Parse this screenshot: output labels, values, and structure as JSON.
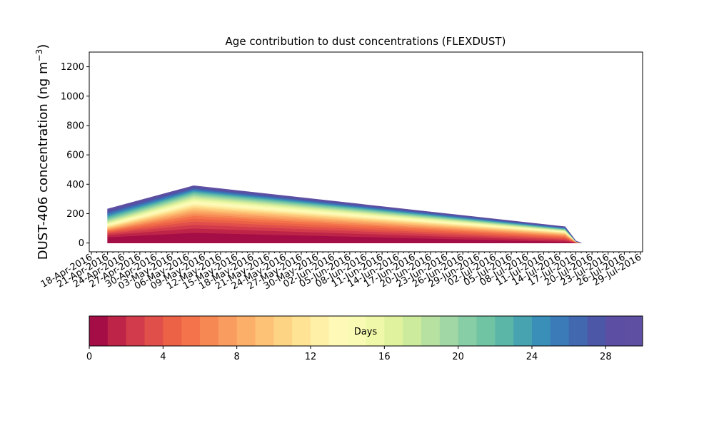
{
  "chart_data": {
    "type": "area",
    "title": "Age contribution to dust concentrations (FLEXDUST)",
    "ylabel_main": "DUST-406 concentration (ng m",
    "ylabel_sup": "−3",
    "ylabel_tail": ")",
    "xlabel": "",
    "ylim": [
      -60,
      1300
    ],
    "yticks": [
      0,
      200,
      400,
      600,
      800,
      1000,
      1200
    ],
    "xlim": [
      "2016-04-18",
      "2016-07-29"
    ],
    "xticks": [
      "18-Apr-2016",
      "21-Apr-2016",
      "24-Apr-2016",
      "27-Apr-2016",
      "30-Apr-2016",
      "03-May-2016",
      "06-May-2016",
      "09-May-2016",
      "12-May-2016",
      "15-May-2016",
      "18-May-2016",
      "21-May-2016",
      "24-May-2016",
      "27-May-2016",
      "30-May-2016",
      "02-Jun-2016",
      "05-Jun-2016",
      "08-Jun-2016",
      "11-Jun-2016",
      "14-Jun-2016",
      "17-Jun-2016",
      "20-Jun-2016",
      "23-Jun-2016",
      "26-Jun-2016",
      "29-Jun-2016",
      "02-Jul-2016",
      "05-Jul-2016",
      "08-Jul-2016",
      "11-Jul-2016",
      "14-Jul-2016",
      "17-Jul-2016",
      "20-Jul-2016",
      "23-Jul-2016",
      "26-Jul-2016",
      "29-Jul-2016"
    ],
    "x": [
      "2016-04-21",
      "2016-05-07",
      "2016-07-15",
      "2016-07-17",
      "2016-07-18"
    ],
    "age_bins_days": [
      0,
      1,
      2,
      3,
      4,
      5,
      6,
      7,
      8,
      9,
      10,
      11,
      12,
      13,
      14,
      15,
      16,
      17,
      18,
      19,
      20,
      21,
      22,
      23,
      24,
      25,
      26,
      27,
      28,
      29
    ],
    "layer_thickness_at_x": [
      [
        40,
        15,
        10,
        8,
        6,
        6,
        5,
        5,
        5,
        5,
        5,
        5,
        5,
        5,
        5,
        5,
        5,
        6,
        6,
        6,
        6,
        7,
        7,
        7,
        7,
        8,
        8,
        8,
        8,
        8
      ],
      [
        70,
        30,
        25,
        22,
        20,
        18,
        14,
        14,
        12,
        12,
        10,
        10,
        10,
        10,
        10,
        10,
        8,
        8,
        8,
        7,
        7,
        7,
        6,
        6,
        6,
        6,
        6,
        6,
        6,
        6
      ],
      [
        9,
        9,
        8,
        7,
        7,
        6,
        5,
        5,
        4,
        4,
        4,
        3,
        3,
        3,
        3,
        3,
        2,
        2,
        2,
        2,
        2,
        2,
        2,
        2,
        2,
        2,
        2,
        2,
        2,
        2
      ],
      [
        1,
        1,
        1,
        1,
        1,
        1,
        1,
        0.5,
        0.5,
        0.5,
        0.5,
        0.5,
        0.5,
        0.3,
        0.3,
        0.3,
        0.3,
        0.2,
        0.2,
        0.2,
        0.2,
        0.2,
        0.2,
        0.2,
        0.2,
        0.2,
        0.2,
        0.2,
        0.2,
        0.2
      ],
      [
        0,
        0,
        0,
        0,
        0,
        0,
        0,
        0,
        0,
        0,
        0,
        0,
        0,
        0,
        0,
        0,
        0,
        0,
        0,
        0,
        0,
        0,
        0,
        0,
        0,
        0,
        0,
        0,
        0,
        0
      ]
    ],
    "colorbar": {
      "label": "Days",
      "range": [
        0,
        30
      ],
      "ticks": [
        0,
        4,
        8,
        12,
        16,
        20,
        24,
        28
      ],
      "colors": [
        "#a50d46",
        "#be2447",
        "#d23b4b",
        "#e14f4a",
        "#eb6247",
        "#f4734b",
        "#f68854",
        "#f99c5f",
        "#fcaf69",
        "#fdc275",
        "#fdd384",
        "#fee394",
        "#fef0a7",
        "#fef9b7",
        "#f9fbb4",
        "#eff8a8",
        "#e0f29e",
        "#cdeb9d",
        "#b7e1a1",
        "#a0d7a4",
        "#87cda5",
        "#70c4a4",
        "#5bb6a8",
        "#48a3b0",
        "#3a8fb8",
        "#3a7bb8",
        "#4268b0",
        "#4c57a8",
        "#5b4ea3",
        "#5e4fa2"
      ]
    }
  }
}
